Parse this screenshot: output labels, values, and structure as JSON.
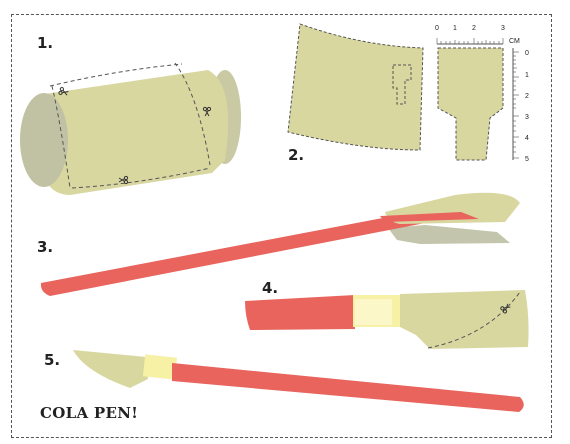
{
  "title": "COLA PEN!",
  "steps": [
    "1.",
    "2.",
    "3.",
    "4.",
    "5."
  ],
  "ruler": {
    "unit": "CM",
    "top_ticks": [
      "0",
      "1",
      "2",
      "3"
    ],
    "side_ticks": [
      "0",
      "1",
      "2",
      "3",
      "4",
      "5"
    ]
  },
  "colors": {
    "can": "#d9d7a0",
    "can_end": "#c0c0a0",
    "pen_shaft": "#e8645d",
    "tape": "#f7f1a6",
    "shadow": "#c3c5ac",
    "outline": "#555555"
  },
  "icons": [
    "scissors-icon"
  ]
}
